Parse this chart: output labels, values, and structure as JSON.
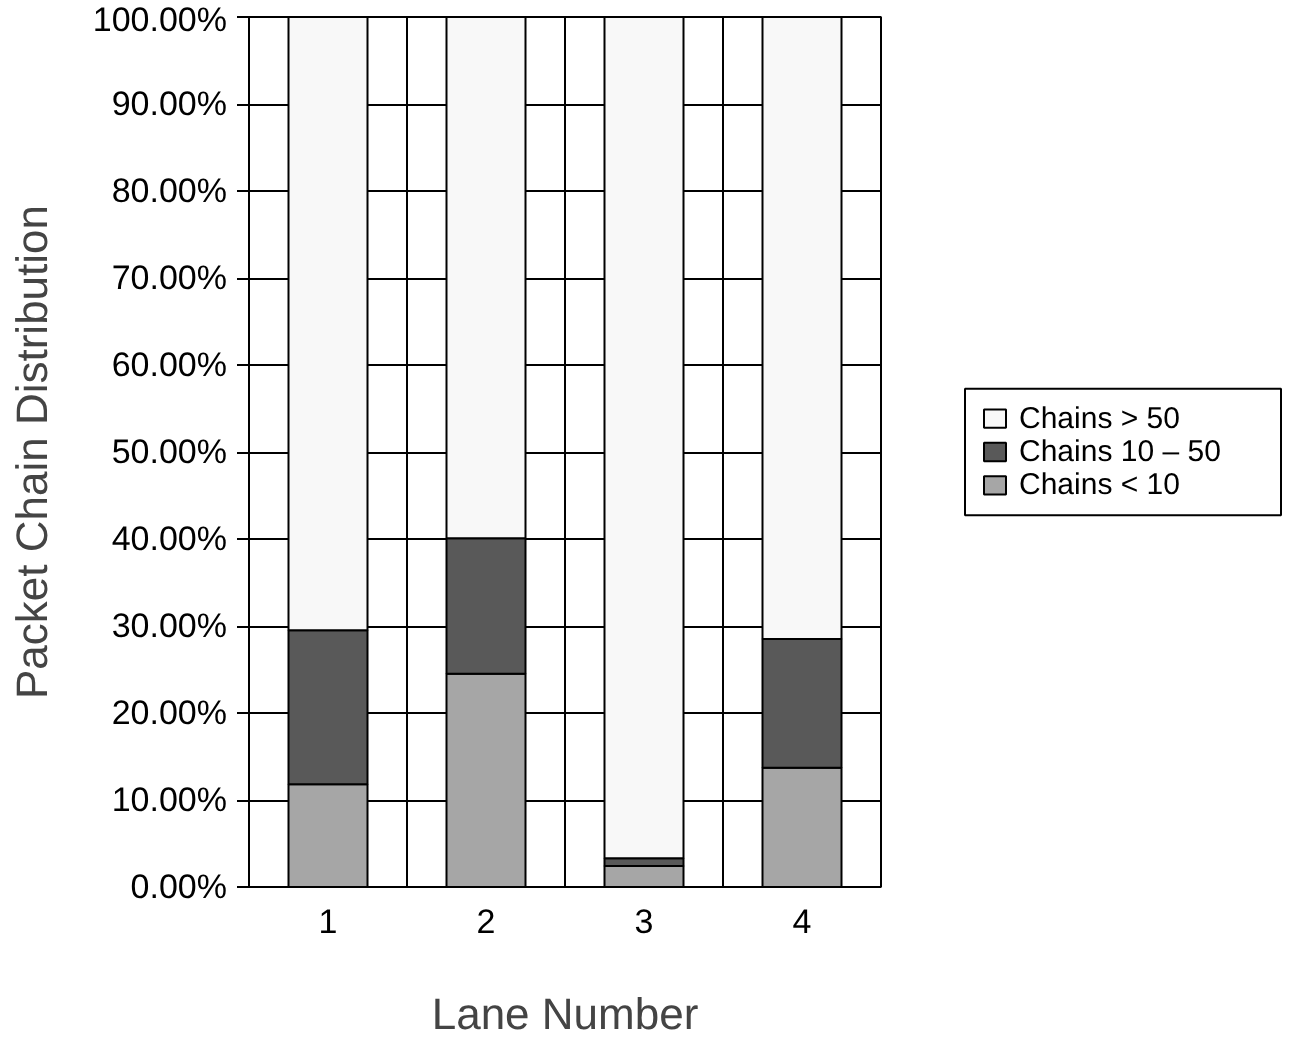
{
  "chart_data": {
    "type": "bar",
    "stacked": true,
    "xlabel": "Lane Number",
    "ylabel": "Packet Chain Distribution",
    "categories": [
      "1",
      "2",
      "3",
      "4"
    ],
    "series": [
      {
        "name": "Chains < 10",
        "color": "#a6a6a6",
        "values": [
          11.8,
          24.5,
          2.4,
          13.7
        ]
      },
      {
        "name": "Chains 10 – 50",
        "color": "#595959",
        "values": [
          17.7,
          15.6,
          0.9,
          14.8
        ]
      },
      {
        "name": "Chains > 50",
        "color": "#f8f8f8",
        "values": [
          70.5,
          59.9,
          96.7,
          71.5
        ]
      }
    ],
    "ylim": [
      0,
      100
    ],
    "yticks": [
      {
        "value": 0,
        "label": "0.00%"
      },
      {
        "value": 10,
        "label": "10.00%"
      },
      {
        "value": 20,
        "label": "20.00%"
      },
      {
        "value": 30,
        "label": "30.00%"
      },
      {
        "value": 40,
        "label": "40.00%"
      },
      {
        "value": 50,
        "label": "50.00%"
      },
      {
        "value": 60,
        "label": "60.00%"
      },
      {
        "value": 70,
        "label": "70.00%"
      },
      {
        "value": 80,
        "label": "80.00%"
      },
      {
        "value": 90,
        "label": "90.00%"
      },
      {
        "value": 100,
        "label": "100.00%"
      }
    ],
    "grid": true,
    "legend": "right"
  }
}
